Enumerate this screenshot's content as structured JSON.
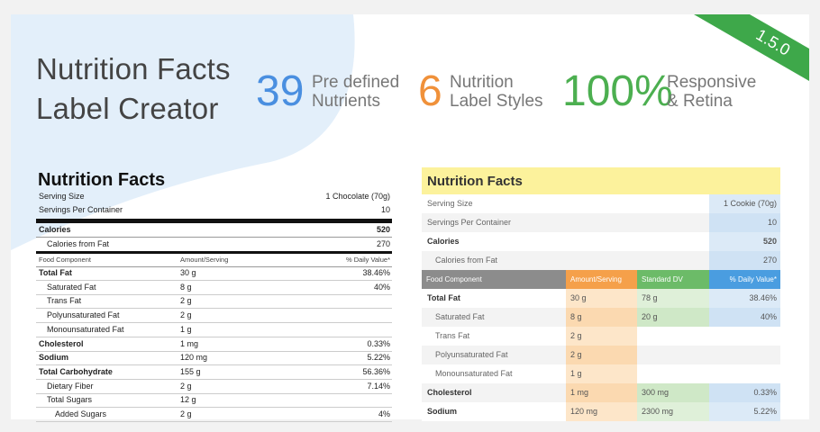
{
  "header": {
    "title_lines": [
      "Nutrition Facts",
      "Label Creator"
    ],
    "version": "1.5.0",
    "stats": [
      {
        "number": "39",
        "lines": [
          "Pre defined",
          "Nutrients"
        ],
        "color": "#4a8fe0"
      },
      {
        "number": "6",
        "lines": [
          "Nutrition",
          "Label Styles"
        ],
        "color": "#f0913a"
      },
      {
        "number": "100%",
        "lines": [
          "Responsive",
          "& Retina"
        ],
        "color": "#4caf50"
      }
    ]
  },
  "label_classic": {
    "title": "Nutrition Facts",
    "serving": [
      {
        "name": "Serving Size",
        "value": "1 Chocolate (70g)"
      },
      {
        "name": "Servings Per Container",
        "value": "10"
      }
    ],
    "calories": [
      {
        "name": "Calories",
        "value": "520",
        "level": 0
      },
      {
        "name": "Calories from Fat",
        "value": "270",
        "level": 1
      }
    ],
    "columns": [
      "Food Component",
      "Amount/Serving",
      "% Daily Value*"
    ],
    "rows": [
      {
        "name": "Total Fat",
        "amount": "30 g",
        "dv": "38.46%",
        "level": 0
      },
      {
        "name": "Saturated Fat",
        "amount": "8 g",
        "dv": "40%",
        "level": 1
      },
      {
        "name": "Trans Fat",
        "amount": "2 g",
        "level": 1
      },
      {
        "name": "Polyunsaturated Fat",
        "amount": "2 g",
        "level": 1
      },
      {
        "name": "Monounsaturated Fat",
        "amount": "1 g",
        "level": 1
      },
      {
        "name": "Cholesterol",
        "amount": "1 mg",
        "dv": "0.33%",
        "level": 0
      },
      {
        "name": "Sodium",
        "amount": "120 mg",
        "dv": "5.22%",
        "level": 0
      },
      {
        "name": "Total Carbohydrate",
        "amount": "155 g",
        "dv": "56.36%",
        "level": 0
      },
      {
        "name": "Dietary Fiber",
        "amount": "2 g",
        "dv": "7.14%",
        "level": 1
      },
      {
        "name": "Total Sugars",
        "amount": "12 g",
        "level": 1
      },
      {
        "name": "Added Sugars",
        "amount": "2 g",
        "dv": "4%",
        "level": 2
      }
    ]
  },
  "label_colored": {
    "title": "Nutrition Facts",
    "serving": [
      {
        "name": "Serving Size",
        "value": "1 Cookie (70g)",
        "level": 1
      },
      {
        "name": "Servings Per Container",
        "value": "10",
        "level": 1
      },
      {
        "name": "Calories",
        "value": "520",
        "level": 0
      },
      {
        "name": "Calories from Fat",
        "value": "270",
        "level": 2
      }
    ],
    "columns": [
      "Food Component",
      "Amount/Serving",
      "Standard DV",
      "% Daily Value*"
    ],
    "rows": [
      {
        "name": "Total Fat",
        "amount": "30 g",
        "std": "78 g",
        "dv": "38.46%",
        "level": 0
      },
      {
        "name": "Saturated Fat",
        "amount": "8 g",
        "std": "20 g",
        "dv": "40%",
        "level": 1
      },
      {
        "name": "Trans Fat",
        "amount": "2 g",
        "level": 1
      },
      {
        "name": "Polyunsaturated Fat",
        "amount": "2 g",
        "level": 1
      },
      {
        "name": "Monounsaturated Fat",
        "amount": "1 g",
        "level": 1
      },
      {
        "name": "Cholesterol",
        "amount": "1 mg",
        "std": "300 mg",
        "dv": "0.33%",
        "level": 0
      },
      {
        "name": "Sodium",
        "amount": "120 mg",
        "std": "2300 mg",
        "dv": "5.22%",
        "level": 0
      }
    ]
  }
}
